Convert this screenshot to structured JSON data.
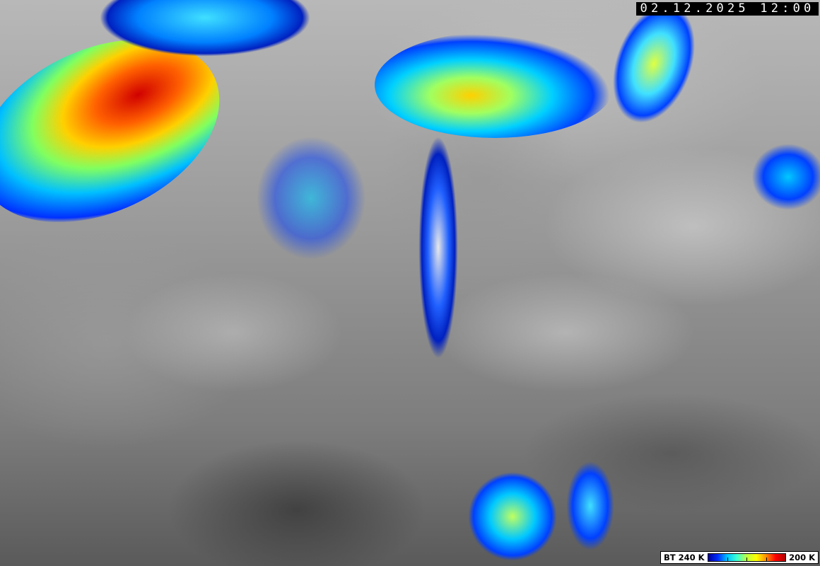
{
  "timestamp": "02.12.2025 12:00",
  "legend": {
    "left_label": "BT 240 K",
    "right_label": "200 K",
    "colors": [
      "#0000a0",
      "#0030ff",
      "#00c8ff",
      "#40ffd0",
      "#c0ff40",
      "#ffff00",
      "#ff9000",
      "#ff0000",
      "#b00000"
    ]
  }
}
